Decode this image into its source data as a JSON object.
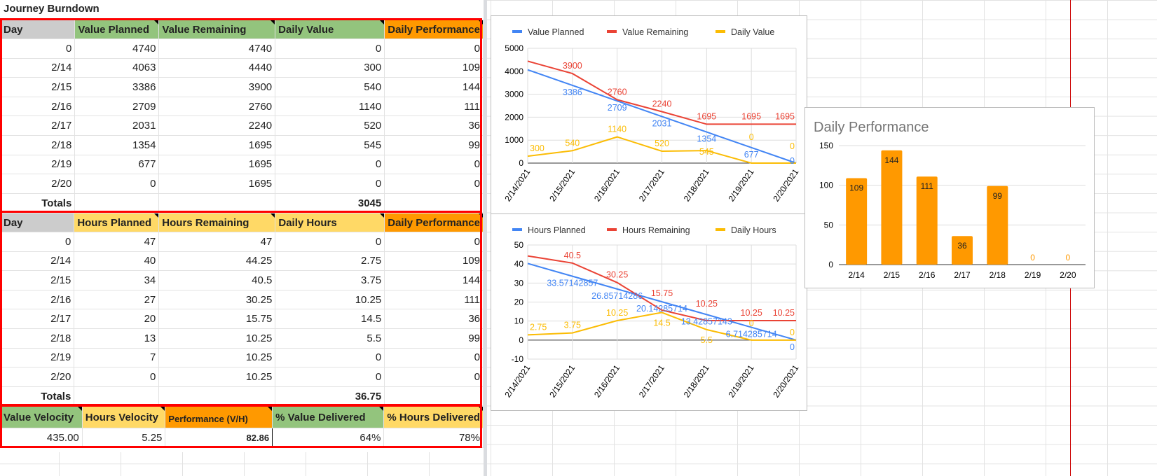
{
  "sheet": {
    "title": "Journey Burndown",
    "value_table": {
      "headers": [
        "Day",
        "Value Planned",
        "Value Remaining",
        "Daily Value",
        "Daily Performance"
      ],
      "rows": [
        [
          "0",
          "4740",
          "4740",
          "0",
          "0"
        ],
        [
          "2/14",
          "4063",
          "4440",
          "300",
          "109"
        ],
        [
          "2/15",
          "3386",
          "3900",
          "540",
          "144"
        ],
        [
          "2/16",
          "2709",
          "2760",
          "1140",
          "111"
        ],
        [
          "2/17",
          "2031",
          "2240",
          "520",
          "36"
        ],
        [
          "2/18",
          "1354",
          "1695",
          "545",
          "99"
        ],
        [
          "2/19",
          "677",
          "1695",
          "0",
          "0"
        ],
        [
          "2/20",
          "0",
          "1695",
          "0",
          "0"
        ]
      ],
      "totals_label": "Totals",
      "totals_value": "3045"
    },
    "hours_table": {
      "headers": [
        "Day",
        "Hours Planned",
        "Hours Remaining",
        "Daily Hours",
        "Daily Performance"
      ],
      "rows": [
        [
          "0",
          "47",
          "47",
          "0",
          "0"
        ],
        [
          "2/14",
          "40",
          "44.25",
          "2.75",
          "109"
        ],
        [
          "2/15",
          "34",
          "40.5",
          "3.75",
          "144"
        ],
        [
          "2/16",
          "27",
          "30.25",
          "10.25",
          "111"
        ],
        [
          "2/17",
          "20",
          "15.75",
          "14.5",
          "36"
        ],
        [
          "2/18",
          "13",
          "10.25",
          "5.5",
          "99"
        ],
        [
          "2/19",
          "7",
          "10.25",
          "0",
          "0"
        ],
        [
          "2/20",
          "0",
          "10.25",
          "0",
          "0"
        ]
      ],
      "totals_label": "Totals",
      "totals_value": "36.75"
    },
    "summary": {
      "headers": [
        "Value Velocity",
        "Hours Velocity",
        "Performance (V/H)",
        "% Value Delivered",
        "% Hours Delivered"
      ],
      "values": [
        "435.00",
        "5.25",
        "82.86",
        "64%",
        "78%"
      ]
    }
  },
  "chart_data": [
    {
      "type": "line",
      "x": [
        "2/14/2021",
        "2/15/2021",
        "2/16/2021",
        "2/17/2021",
        "2/18/2021",
        "2/19/2021",
        "2/20/2021"
      ],
      "ylim": [
        0,
        5000
      ],
      "yticks": [
        0,
        1000,
        2000,
        3000,
        4000,
        5000
      ],
      "series": [
        {
          "name": "Value Planned",
          "color": "#4285f4",
          "values": [
            4063,
            3386,
            2709,
            2031,
            1354,
            677,
            0
          ]
        },
        {
          "name": "Value Remaining",
          "color": "#ea4335",
          "values": [
            4440,
            3900,
            2760,
            2240,
            1695,
            1695,
            1695
          ]
        },
        {
          "name": "Daily Value",
          "color": "#fbbc04",
          "values": [
            300,
            540,
            1140,
            520,
            545,
            0,
            0
          ]
        }
      ]
    },
    {
      "type": "line",
      "x": [
        "2/14/2021",
        "2/15/2021",
        "2/16/2021",
        "2/17/2021",
        "2/18/2021",
        "2/19/2021",
        "2/20/2021"
      ],
      "ylim": [
        -10,
        50
      ],
      "yticks": [
        -10,
        0,
        10,
        20,
        30,
        40,
        50
      ],
      "series": [
        {
          "name": "Hours Planned",
          "color": "#4285f4",
          "values": [
            40.28571429,
            33.57142857,
            26.85714286,
            20.14285714,
            13.42857143,
            6.714285714,
            0
          ]
        },
        {
          "name": "Hours Remaining",
          "color": "#ea4335",
          "values": [
            44.25,
            40.5,
            30.25,
            15.75,
            10.25,
            10.25,
            10.25
          ]
        },
        {
          "name": "Daily Hours",
          "color": "#fbbc04",
          "values": [
            2.75,
            3.75,
            10.25,
            14.5,
            5.5,
            0,
            0
          ]
        }
      ]
    },
    {
      "type": "bar",
      "title": "Daily Performance",
      "categories": [
        "2/14",
        "2/15",
        "2/16",
        "2/17",
        "2/18",
        "2/19",
        "2/20"
      ],
      "values": [
        109,
        144,
        111,
        36,
        99,
        0,
        0
      ],
      "ylim": [
        0,
        150
      ],
      "yticks": [
        0,
        50,
        100,
        150
      ],
      "color": "#ff9900"
    }
  ]
}
